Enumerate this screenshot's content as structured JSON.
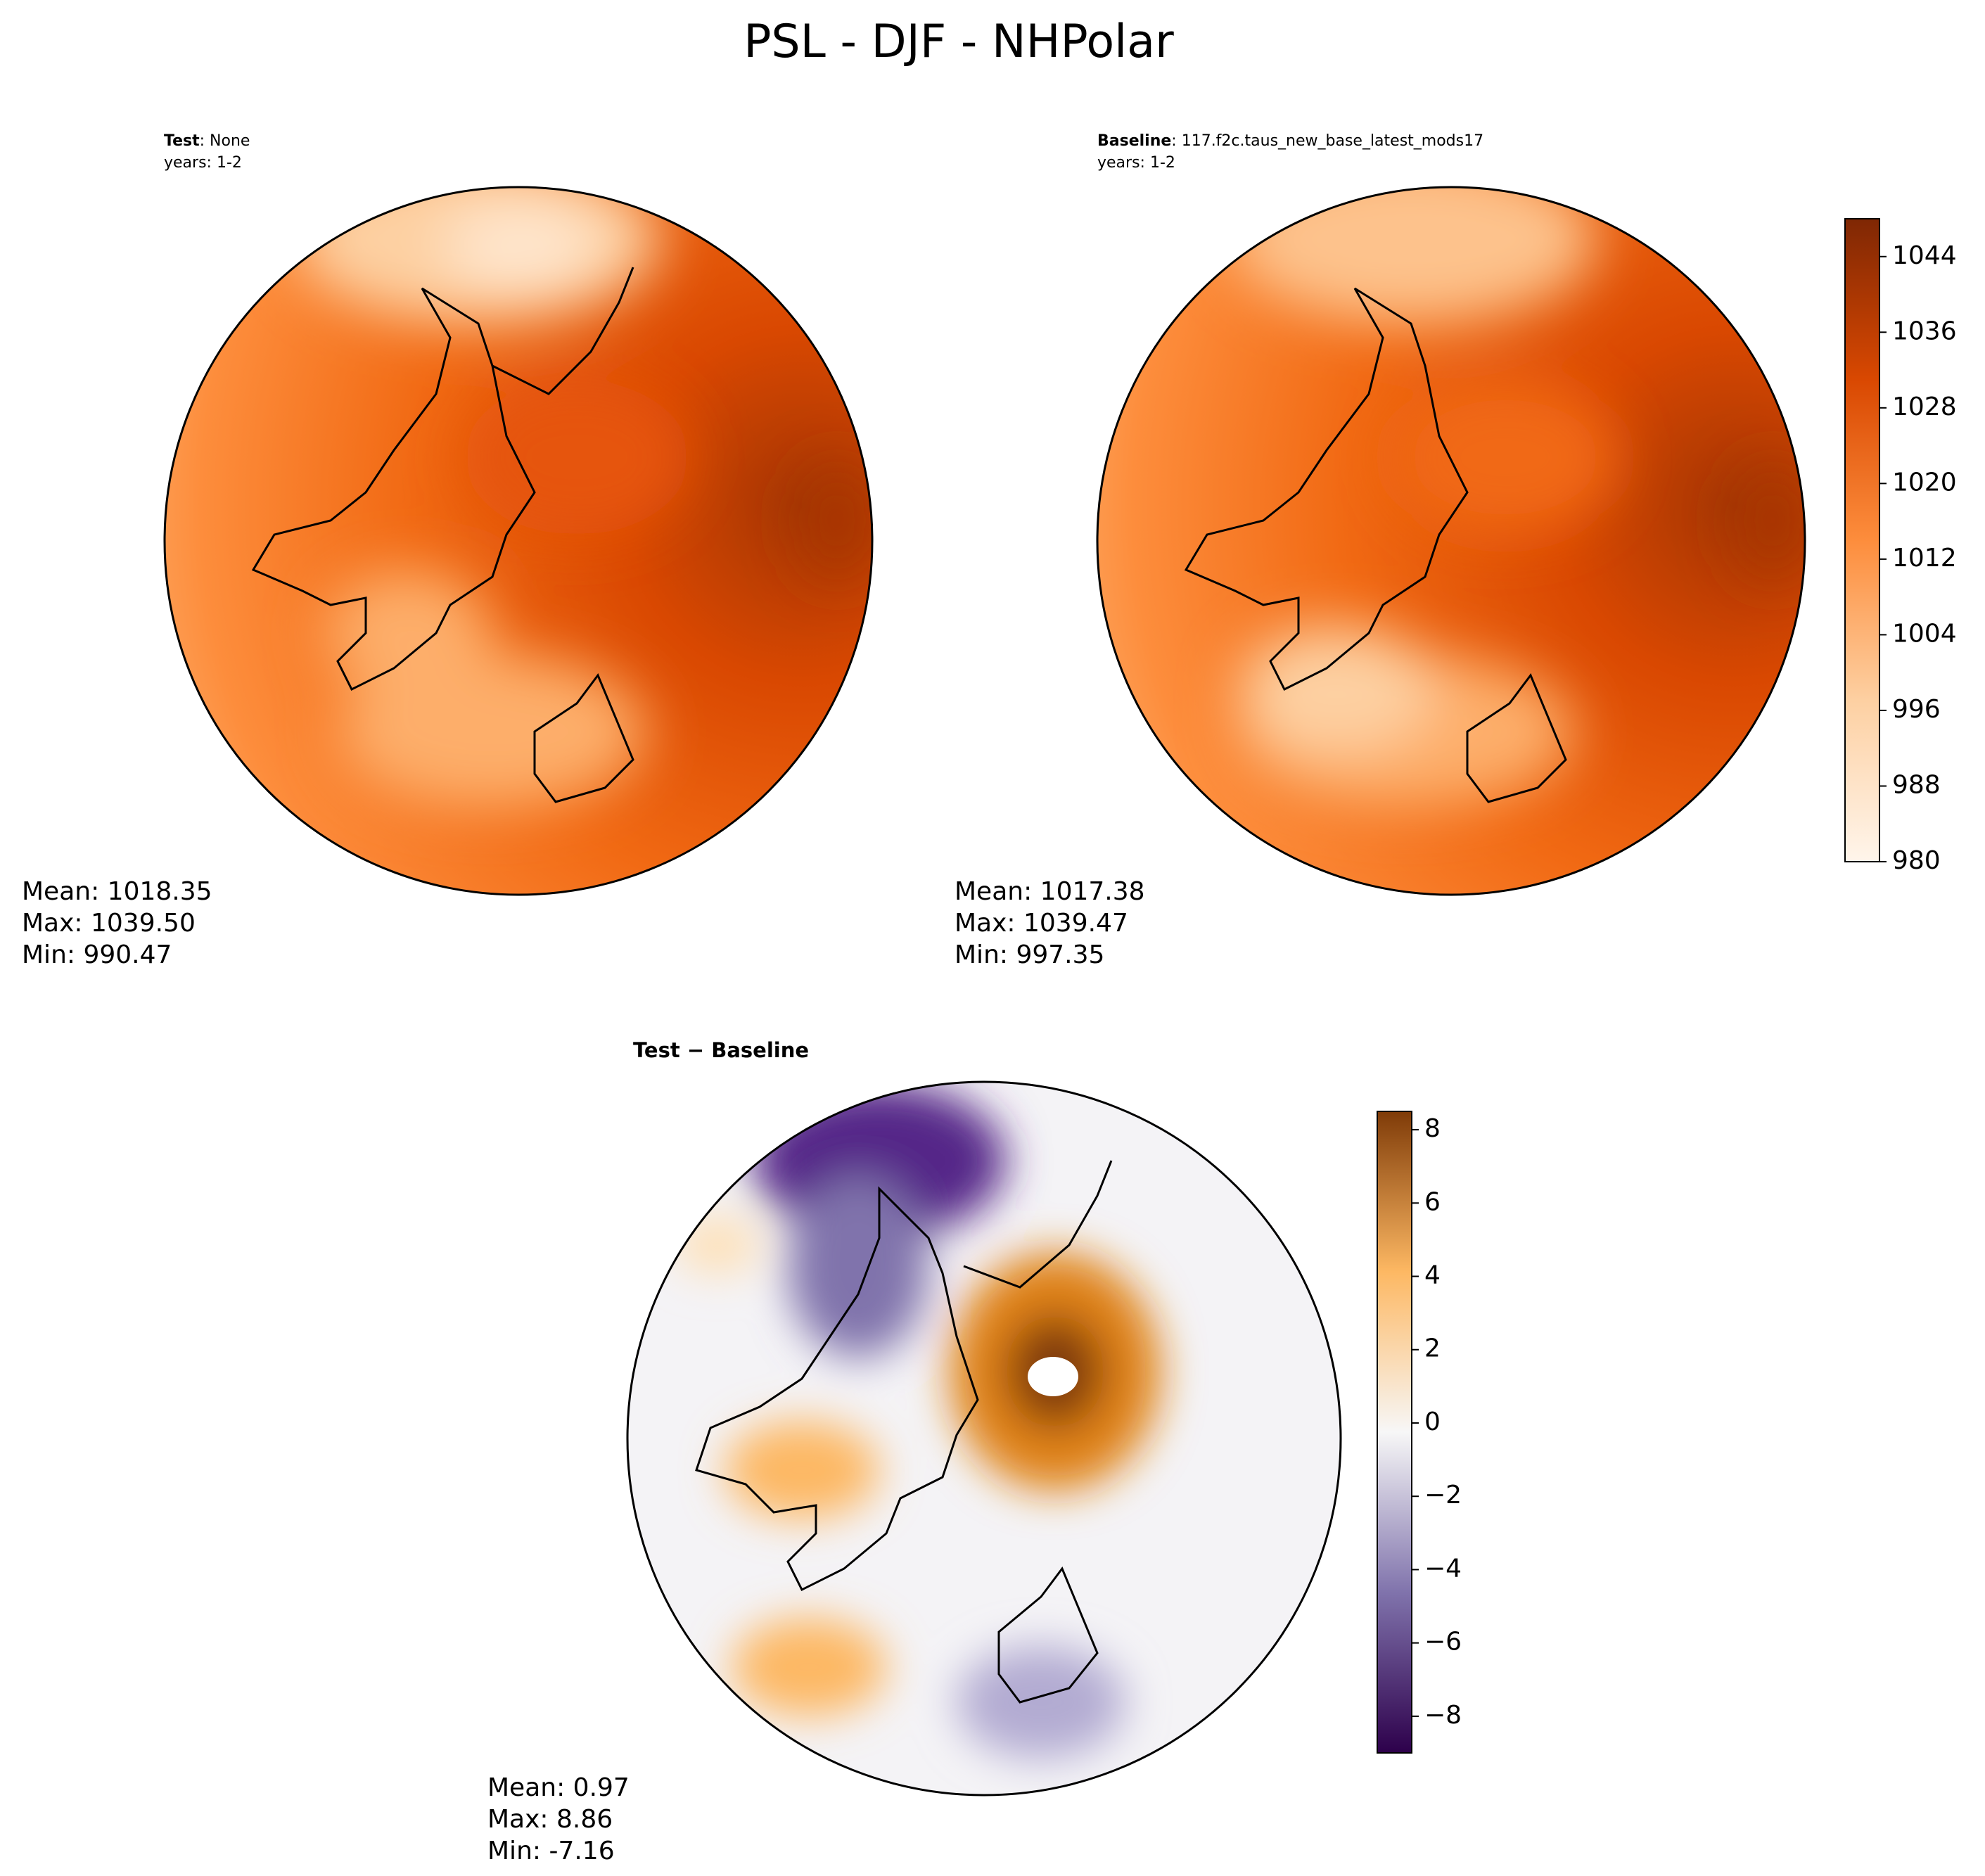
{
  "title": "PSL - DJF - NHPolar",
  "panels": [
    {
      "label_bold": "Test",
      "label_rest": ": None",
      "years": "years: 1-2",
      "stats": [
        "Mean: 1018.35",
        "Max: 1039.50",
        "Min: 990.47"
      ]
    },
    {
      "label_bold": "Baseline",
      "label_rest": ": 117.f2c.taus_new_base_latest_mods17",
      "years": "years: 1-2",
      "stats": [
        "Mean: 1017.38",
        "Max: 1039.47",
        "Min: 997.35"
      ]
    },
    {
      "title": "Test − Baseline",
      "stats": [
        "Mean:  0.97",
        "Max:  8.86",
        "Min: -7.16"
      ]
    }
  ],
  "colorbars": [
    {
      "lim": [
        980,
        1048
      ],
      "ticks": [
        980,
        988,
        996,
        1004,
        1012,
        1020,
        1028,
        1036,
        1044
      ],
      "colors": [
        "#fff5eb",
        "#fdd0a2",
        "#fd8d3c",
        "#d94801",
        "#7f2704"
      ]
    },
    {
      "lim": [
        -9,
        8.5
      ],
      "ticks": [
        {
          "value": -8,
          "label": "−8"
        },
        {
          "value": -6,
          "label": "−6"
        },
        {
          "value": -4,
          "label": "−4"
        },
        {
          "value": -2,
          "label": "−2"
        },
        0,
        2,
        4,
        6,
        8
      ],
      "colors": [
        "#2d004b",
        "#8073ac",
        "#f7f7f7",
        "#fdb863",
        "#7f3b08"
      ]
    }
  ]
}
